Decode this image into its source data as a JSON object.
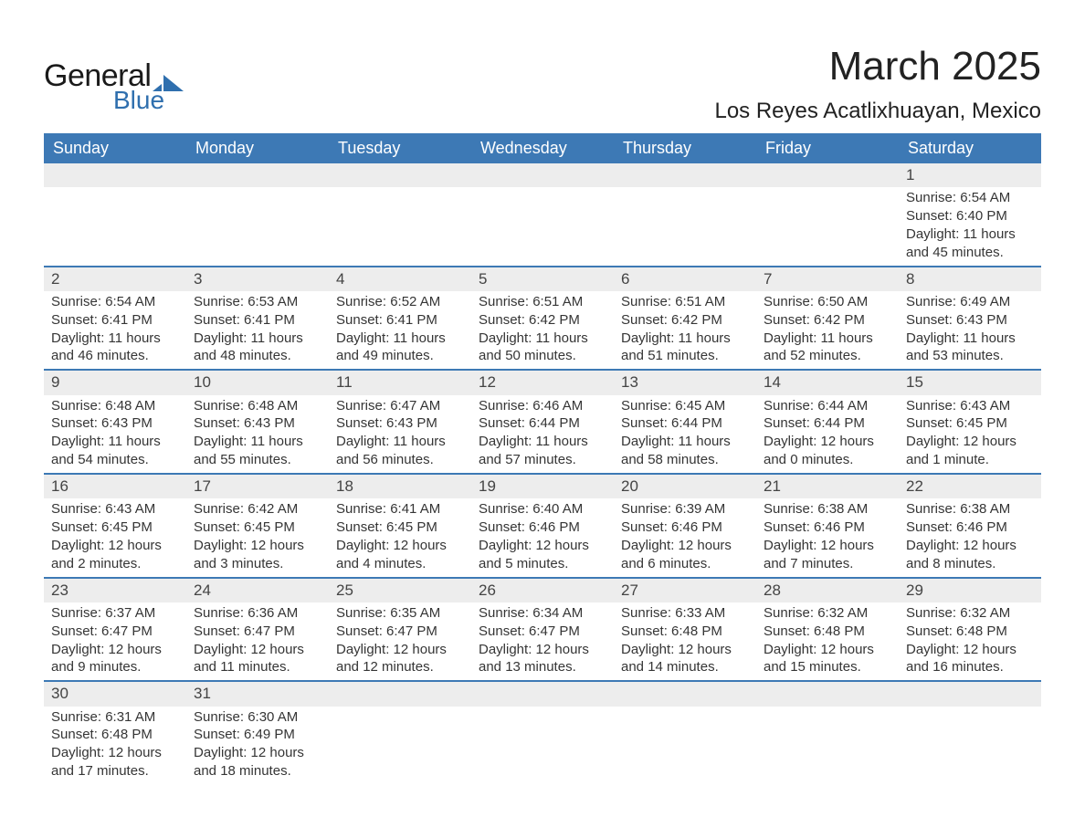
{
  "logo": {
    "text_general": "General",
    "text_blue": "Blue",
    "icon_color": "#2f6fae"
  },
  "header": {
    "month_title": "March 2025",
    "location": "Los Reyes Acatlixhuayan, Mexico"
  },
  "colors": {
    "header_bg": "#3d79b5",
    "header_fg": "#ffffff",
    "daynum_bg": "#ededed",
    "row_divider": "#3d79b5",
    "body_text": "#353535"
  },
  "typography": {
    "month_title_fontsize": 44,
    "location_fontsize": 24,
    "weekday_fontsize": 18,
    "daynum_fontsize": 17,
    "body_fontsize": 15
  },
  "weekdays": [
    "Sunday",
    "Monday",
    "Tuesday",
    "Wednesday",
    "Thursday",
    "Friday",
    "Saturday"
  ],
  "weeks": [
    [
      null,
      null,
      null,
      null,
      null,
      null,
      {
        "day": "1",
        "sunrise": "Sunrise: 6:54 AM",
        "sunset": "Sunset: 6:40 PM",
        "daylight1": "Daylight: 11 hours",
        "daylight2": "and 45 minutes."
      }
    ],
    [
      {
        "day": "2",
        "sunrise": "Sunrise: 6:54 AM",
        "sunset": "Sunset: 6:41 PM",
        "daylight1": "Daylight: 11 hours",
        "daylight2": "and 46 minutes."
      },
      {
        "day": "3",
        "sunrise": "Sunrise: 6:53 AM",
        "sunset": "Sunset: 6:41 PM",
        "daylight1": "Daylight: 11 hours",
        "daylight2": "and 48 minutes."
      },
      {
        "day": "4",
        "sunrise": "Sunrise: 6:52 AM",
        "sunset": "Sunset: 6:41 PM",
        "daylight1": "Daylight: 11 hours",
        "daylight2": "and 49 minutes."
      },
      {
        "day": "5",
        "sunrise": "Sunrise: 6:51 AM",
        "sunset": "Sunset: 6:42 PM",
        "daylight1": "Daylight: 11 hours",
        "daylight2": "and 50 minutes."
      },
      {
        "day": "6",
        "sunrise": "Sunrise: 6:51 AM",
        "sunset": "Sunset: 6:42 PM",
        "daylight1": "Daylight: 11 hours",
        "daylight2": "and 51 minutes."
      },
      {
        "day": "7",
        "sunrise": "Sunrise: 6:50 AM",
        "sunset": "Sunset: 6:42 PM",
        "daylight1": "Daylight: 11 hours",
        "daylight2": "and 52 minutes."
      },
      {
        "day": "8",
        "sunrise": "Sunrise: 6:49 AM",
        "sunset": "Sunset: 6:43 PM",
        "daylight1": "Daylight: 11 hours",
        "daylight2": "and 53 minutes."
      }
    ],
    [
      {
        "day": "9",
        "sunrise": "Sunrise: 6:48 AM",
        "sunset": "Sunset: 6:43 PM",
        "daylight1": "Daylight: 11 hours",
        "daylight2": "and 54 minutes."
      },
      {
        "day": "10",
        "sunrise": "Sunrise: 6:48 AM",
        "sunset": "Sunset: 6:43 PM",
        "daylight1": "Daylight: 11 hours",
        "daylight2": "and 55 minutes."
      },
      {
        "day": "11",
        "sunrise": "Sunrise: 6:47 AM",
        "sunset": "Sunset: 6:43 PM",
        "daylight1": "Daylight: 11 hours",
        "daylight2": "and 56 minutes."
      },
      {
        "day": "12",
        "sunrise": "Sunrise: 6:46 AM",
        "sunset": "Sunset: 6:44 PM",
        "daylight1": "Daylight: 11 hours",
        "daylight2": "and 57 minutes."
      },
      {
        "day": "13",
        "sunrise": "Sunrise: 6:45 AM",
        "sunset": "Sunset: 6:44 PM",
        "daylight1": "Daylight: 11 hours",
        "daylight2": "and 58 minutes."
      },
      {
        "day": "14",
        "sunrise": "Sunrise: 6:44 AM",
        "sunset": "Sunset: 6:44 PM",
        "daylight1": "Daylight: 12 hours",
        "daylight2": "and 0 minutes."
      },
      {
        "day": "15",
        "sunrise": "Sunrise: 6:43 AM",
        "sunset": "Sunset: 6:45 PM",
        "daylight1": "Daylight: 12 hours",
        "daylight2": "and 1 minute."
      }
    ],
    [
      {
        "day": "16",
        "sunrise": "Sunrise: 6:43 AM",
        "sunset": "Sunset: 6:45 PM",
        "daylight1": "Daylight: 12 hours",
        "daylight2": "and 2 minutes."
      },
      {
        "day": "17",
        "sunrise": "Sunrise: 6:42 AM",
        "sunset": "Sunset: 6:45 PM",
        "daylight1": "Daylight: 12 hours",
        "daylight2": "and 3 minutes."
      },
      {
        "day": "18",
        "sunrise": "Sunrise: 6:41 AM",
        "sunset": "Sunset: 6:45 PM",
        "daylight1": "Daylight: 12 hours",
        "daylight2": "and 4 minutes."
      },
      {
        "day": "19",
        "sunrise": "Sunrise: 6:40 AM",
        "sunset": "Sunset: 6:46 PM",
        "daylight1": "Daylight: 12 hours",
        "daylight2": "and 5 minutes."
      },
      {
        "day": "20",
        "sunrise": "Sunrise: 6:39 AM",
        "sunset": "Sunset: 6:46 PM",
        "daylight1": "Daylight: 12 hours",
        "daylight2": "and 6 minutes."
      },
      {
        "day": "21",
        "sunrise": "Sunrise: 6:38 AM",
        "sunset": "Sunset: 6:46 PM",
        "daylight1": "Daylight: 12 hours",
        "daylight2": "and 7 minutes."
      },
      {
        "day": "22",
        "sunrise": "Sunrise: 6:38 AM",
        "sunset": "Sunset: 6:46 PM",
        "daylight1": "Daylight: 12 hours",
        "daylight2": "and 8 minutes."
      }
    ],
    [
      {
        "day": "23",
        "sunrise": "Sunrise: 6:37 AM",
        "sunset": "Sunset: 6:47 PM",
        "daylight1": "Daylight: 12 hours",
        "daylight2": "and 9 minutes."
      },
      {
        "day": "24",
        "sunrise": "Sunrise: 6:36 AM",
        "sunset": "Sunset: 6:47 PM",
        "daylight1": "Daylight: 12 hours",
        "daylight2": "and 11 minutes."
      },
      {
        "day": "25",
        "sunrise": "Sunrise: 6:35 AM",
        "sunset": "Sunset: 6:47 PM",
        "daylight1": "Daylight: 12 hours",
        "daylight2": "and 12 minutes."
      },
      {
        "day": "26",
        "sunrise": "Sunrise: 6:34 AM",
        "sunset": "Sunset: 6:47 PM",
        "daylight1": "Daylight: 12 hours",
        "daylight2": "and 13 minutes."
      },
      {
        "day": "27",
        "sunrise": "Sunrise: 6:33 AM",
        "sunset": "Sunset: 6:48 PM",
        "daylight1": "Daylight: 12 hours",
        "daylight2": "and 14 minutes."
      },
      {
        "day": "28",
        "sunrise": "Sunrise: 6:32 AM",
        "sunset": "Sunset: 6:48 PM",
        "daylight1": "Daylight: 12 hours",
        "daylight2": "and 15 minutes."
      },
      {
        "day": "29",
        "sunrise": "Sunrise: 6:32 AM",
        "sunset": "Sunset: 6:48 PM",
        "daylight1": "Daylight: 12 hours",
        "daylight2": "and 16 minutes."
      }
    ],
    [
      {
        "day": "30",
        "sunrise": "Sunrise: 6:31 AM",
        "sunset": "Sunset: 6:48 PM",
        "daylight1": "Daylight: 12 hours",
        "daylight2": "and 17 minutes."
      },
      {
        "day": "31",
        "sunrise": "Sunrise: 6:30 AM",
        "sunset": "Sunset: 6:49 PM",
        "daylight1": "Daylight: 12 hours",
        "daylight2": "and 18 minutes."
      },
      null,
      null,
      null,
      null,
      null
    ]
  ]
}
